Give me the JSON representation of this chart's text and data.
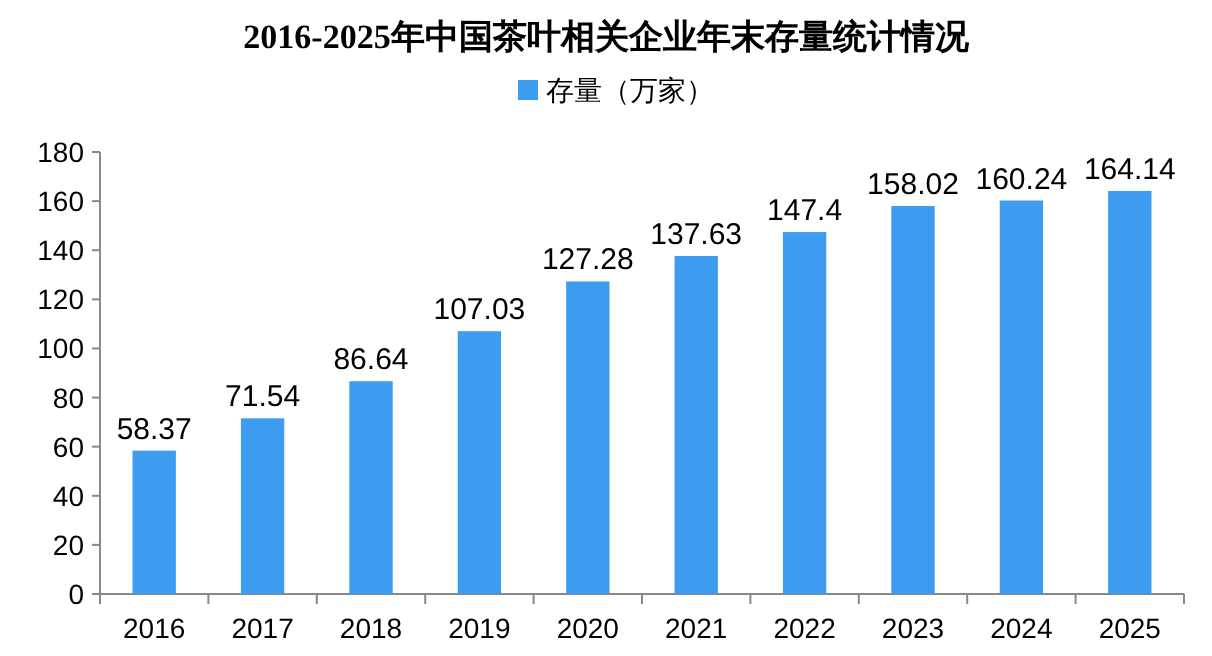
{
  "chart_data": {
    "type": "bar",
    "title": "2016-2025年中国茶叶相关企业年末存量统计情况",
    "categories": [
      "2016",
      "2017",
      "2018",
      "2019",
      "2020",
      "2021",
      "2022",
      "2023",
      "2024",
      "2025"
    ],
    "series": [
      {
        "name": "存量（万家）",
        "color": "#3d9cf0",
        "values": [
          58.37,
          71.54,
          86.64,
          107.03,
          127.28,
          137.63,
          147.4,
          158.02,
          160.24,
          164.14
        ]
      }
    ],
    "ylim": [
      0,
      180
    ],
    "yticks": [
      0,
      20,
      40,
      60,
      80,
      100,
      120,
      140,
      160,
      180
    ],
    "data_labels": true,
    "legend": "top"
  }
}
